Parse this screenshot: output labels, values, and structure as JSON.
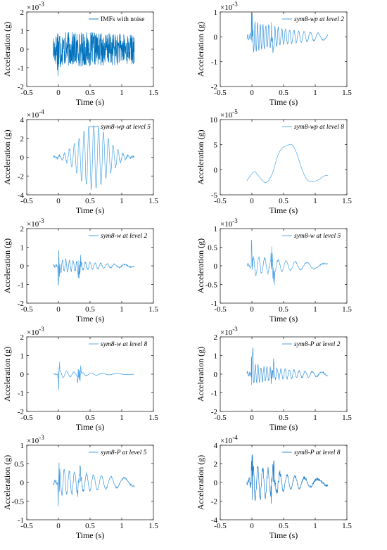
{
  "page": {
    "panel_rows": 5,
    "panel_columns": 2
  },
  "chart_data": [
    {
      "type": "line",
      "legend": "IMFs with noise",
      "legend_italic": false,
      "ylabel": "Acceleration (g)",
      "xlabel": "Time (s)",
      "xlim": [
        -0.5,
        1.5
      ],
      "x_ticks": [
        "-0.5",
        "0",
        "0.5",
        "1",
        "1.5"
      ],
      "ylim": [
        -2,
        2
      ],
      "y_ticks": [
        "-2",
        "-1",
        "0",
        "1",
        "2"
      ],
      "exponent": "-3",
      "series_color": "#0072BD",
      "signal": {
        "t0": -0.08,
        "t1": 1.2,
        "kind": "dense",
        "amp": 0.95,
        "base": 0.35,
        "spike": 1.4,
        "decay": 0.4
      }
    },
    {
      "type": "line",
      "legend": "sym8-wp at level 2",
      "legend_italic": true,
      "ylabel": "Acceleration (g)",
      "xlabel": "Time (s)",
      "xlim": [
        -0.5,
        1.5
      ],
      "x_ticks": [
        "-0.5",
        "0",
        "0.5",
        "1",
        "1.5"
      ],
      "ylim": [
        -2,
        1
      ],
      "y_ticks": [
        "-2",
        "-1",
        "0",
        "1"
      ],
      "exponent": "-3",
      "series_color": "#3A96DD",
      "signal": {
        "t0": -0.08,
        "t1": 1.2,
        "kind": "burst",
        "amp": 0.65,
        "base": 0.05,
        "spike": 1.2,
        "decay": 1.4,
        "freq": 26
      }
    },
    {
      "type": "line",
      "legend": "sym8-wp at level 5",
      "legend_italic": true,
      "ylabel": "Acceleration (g)",
      "xlabel": "Time (s)",
      "xlim": [
        -0.5,
        1.5
      ],
      "x_ticks": [
        "-0.5",
        "0",
        "0.5",
        "1",
        "1.5"
      ],
      "ylim": [
        -4,
        4
      ],
      "y_ticks": [
        "-4",
        "-2",
        "0",
        "2",
        "4"
      ],
      "exponent": "-4",
      "series_color": "#4DA6E8",
      "signal": {
        "t0": -0.08,
        "t1": 1.2,
        "kind": "packet",
        "amp": 3.4,
        "center": 0.55,
        "width": 0.32,
        "freq": 13
      }
    },
    {
      "type": "line",
      "legend": "sym8-wp at level 8",
      "legend_italic": true,
      "ylabel": "Acceleration (g)",
      "xlabel": "Time (s)",
      "xlim": [
        -0.5,
        1.5
      ],
      "x_ticks": [
        "-0.5",
        "0",
        "0.5",
        "1",
        "1.5"
      ],
      "ylim": [
        -5,
        10
      ],
      "y_ticks": [
        "-5",
        "0",
        "5",
        "10"
      ],
      "exponent": "-5",
      "series_color": "#4DA6E8",
      "x": [
        -0.08,
        0.0,
        0.05,
        0.12,
        0.2,
        0.26,
        0.33,
        0.4,
        0.47,
        0.55,
        0.63,
        0.7,
        0.78,
        0.86,
        0.95,
        1.05,
        1.13,
        1.2
      ],
      "y": [
        -2.2,
        -0.8,
        -0.4,
        -1.5,
        -2.5,
        -2.2,
        -0.5,
        2.5,
        4.2,
        4.8,
        5.0,
        3.5,
        0.5,
        -1.8,
        -2.4,
        -2.0,
        -1.3,
        -1.1
      ]
    },
    {
      "type": "line",
      "legend": "sym8-w at level 2",
      "legend_italic": true,
      "ylabel": "Acceleration (g)",
      "xlabel": "Time (s)",
      "xlim": [
        -0.5,
        1.5
      ],
      "x_ticks": [
        "-0.5",
        "0",
        "0.5",
        "1",
        "1.5"
      ],
      "ylim": [
        -2,
        2
      ],
      "y_ticks": [
        "-2",
        "-1",
        "0",
        "1",
        "2"
      ],
      "exponent": "-3",
      "series_color": "#3A96DD",
      "signal": {
        "t0": -0.08,
        "t1": 1.2,
        "kind": "burst",
        "amp": 0.4,
        "base": 0.06,
        "spike": 1.3,
        "decay": 1.6,
        "freq": 20
      }
    },
    {
      "type": "line",
      "legend": "sym8-w at level 5",
      "legend_italic": true,
      "ylabel": "Acceleration (g)",
      "xlabel": "Time (s)",
      "xlim": [
        -0.5,
        1.5
      ],
      "x_ticks": [
        "-0.5",
        "0",
        "0.5",
        "1",
        "1.5"
      ],
      "ylim": [
        -1,
        1
      ],
      "y_ticks": [
        "-1",
        "-0.5",
        "0",
        "0.5",
        "1"
      ],
      "exponent": "-3",
      "series_color": "#4DA6E8",
      "signal": {
        "t0": -0.08,
        "t1": 1.2,
        "kind": "burst",
        "amp": 0.25,
        "base": 0.03,
        "spike": 0.9,
        "decay": 1.2,
        "freq": 12
      }
    },
    {
      "type": "line",
      "legend": "sym8-w at level 8",
      "legend_italic": true,
      "ylabel": "Acceleration (g)",
      "xlabel": "Time (s)",
      "xlim": [
        -0.5,
        1.5
      ],
      "x_ticks": [
        "-0.5",
        "0",
        "0.5",
        "1",
        "1.5"
      ],
      "ylim": [
        -2,
        2
      ],
      "y_ticks": [
        "-2",
        "-1",
        "0",
        "1",
        "2"
      ],
      "exponent": "-3",
      "series_color": "#4DA6E8",
      "signal": {
        "t0": -0.08,
        "t1": 1.2,
        "kind": "burst",
        "amp": 0.2,
        "base": 0.02,
        "spike": 1.0,
        "decay": 2.2,
        "freq": 10
      }
    },
    {
      "type": "line",
      "legend": "sym8-P at level 2",
      "legend_italic": true,
      "ylabel": "Acceleration (g)",
      "xlabel": "Time (s)",
      "xlim": [
        -0.5,
        1.5
      ],
      "x_ticks": [
        "-0.5",
        "0",
        "0.5",
        "1",
        "1.5"
      ],
      "ylim": [
        -2,
        2
      ],
      "y_ticks": [
        "-2",
        "-1",
        "0",
        "1",
        "2"
      ],
      "exponent": "-3",
      "series_color": "#3A96DD",
      "signal": {
        "t0": -0.08,
        "t1": 1.2,
        "kind": "burst",
        "amp": 0.5,
        "base": 0.08,
        "spike": 1.4,
        "decay": 1.3,
        "freq": 24
      }
    },
    {
      "type": "line",
      "legend": "sym8-P at level 5",
      "legend_italic": true,
      "ylabel": "Acceleration (g)",
      "xlabel": "Time (s)",
      "xlim": [
        -0.5,
        1.5
      ],
      "x_ticks": [
        "-0.5",
        "0",
        "0.5",
        "1",
        "1.5"
      ],
      "ylim": [
        -1,
        1
      ],
      "y_ticks": [
        "-1",
        "-0.5",
        "0",
        "0.5",
        "1"
      ],
      "exponent": "-3",
      "series_color": "#3A96DD",
      "signal": {
        "t0": -0.08,
        "t1": 1.2,
        "kind": "burst",
        "amp": 0.35,
        "base": 0.04,
        "spike": 0.6,
        "decay": 1.0,
        "freq": 14
      }
    },
    {
      "type": "line",
      "legend": "sym8-P at level 8",
      "legend_italic": true,
      "ylabel": "Acceleration (g)",
      "xlabel": "Time (s)",
      "xlim": [
        -0.5,
        1.5
      ],
      "x_ticks": [
        "-0.5",
        "0",
        "0.5",
        "1",
        "1.5"
      ],
      "ylim": [
        -4,
        4
      ],
      "y_ticks": [
        "-4",
        "-2",
        "0",
        "2",
        "4"
      ],
      "exponent": "-4",
      "series_color": "#1F7FCB",
      "signal": {
        "t0": -0.08,
        "t1": 1.2,
        "kind": "burst",
        "amp": 2.0,
        "base": 0.3,
        "spike": 3.0,
        "decay": 1.6,
        "freq": 14
      }
    }
  ]
}
